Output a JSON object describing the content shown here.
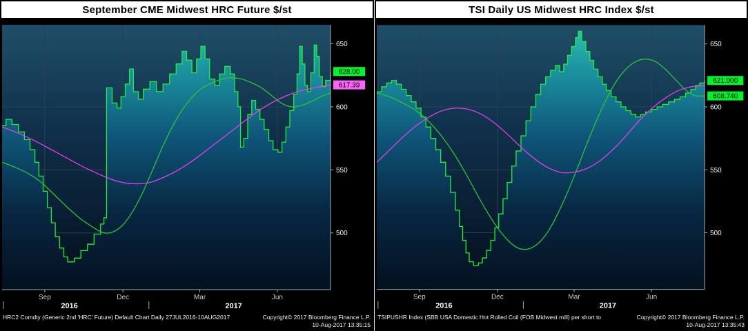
{
  "colors": {
    "background": "#000000",
    "titlebar_bg": "#ffffff",
    "titlebar_text": "#000000",
    "grid": "#2b4055",
    "axis_line": "#9fb0bb",
    "ytick_text": "#f2f5f7",
    "month_text": "#c6cdd3",
    "year_text": "#ffffff",
    "footer_text": "#f0f2f4",
    "price_green": "#22ef3c",
    "ma_green": "#2cc43a",
    "ma_magenta": "#e83ee8",
    "badge_green": "#00f32b",
    "badge_magenta": "#fa64fa",
    "badge_text": "#000000",
    "plot_bg_stops": [
      "#1f4e68",
      "#10304a",
      "#081c30",
      "#040d18"
    ],
    "area_fill_stops": [
      "#31c2b4",
      "#1d98a2",
      "#0f567a",
      "#082843",
      "#04101f"
    ]
  },
  "panels": [
    {
      "title": "September CME Midwest HRC Future $/st",
      "footer_left": "HRC2 Comdty (Generic 2nd 'HRC' Future) Default Chart  Daily 27JUL2016-10AUG2017",
      "copyright": "Copyright© 2017 Bloomberg Finance L.P.",
      "timestamp": "10-Aug-2017 13:35:15"
    },
    {
      "title": "TSI Daily US Midwest HRC Index $/st",
      "footer_left": "TSIPUSHR Index (SBB USA Domestic Hot Rolled Coil (FOB Midwest mill) per short to",
      "copyright": "Copyright© 2017 Bloomberg Finance L.P.",
      "timestamp": "10-Aug-2017 13:35:43"
    }
  ],
  "chart_data": [
    {
      "type": "area",
      "title": "September CME Midwest HRC Future $/st",
      "ylabel": "$/st",
      "y_axis_side": "right",
      "ylim": [
        455,
        665
      ],
      "yticks": [
        500,
        550,
        600,
        650
      ],
      "xticks": [
        {
          "pos": 0.13,
          "label": "Sep"
        },
        {
          "pos": 0.368,
          "label": "Dec"
        },
        {
          "pos": 0.602,
          "label": "Mar"
        },
        {
          "pos": 0.838,
          "label": "Jun"
        }
      ],
      "year_labels": [
        {
          "pos": 0.205,
          "label": "2016"
        },
        {
          "pos": 0.705,
          "label": "2017"
        }
      ],
      "year_dividers": [
        0.004,
        0.447
      ],
      "series": [
        {
          "name": "HRC2 last price",
          "style": "step-area",
          "color": "#22ef3c",
          "x": [
            0,
            0.012,
            0.03,
            0.05,
            0.068,
            0.085,
            0.1,
            0.112,
            0.125,
            0.138,
            0.15,
            0.162,
            0.175,
            0.188,
            0.2,
            0.22,
            0.24,
            0.26,
            0.28,
            0.3,
            0.31,
            0.318,
            0.335,
            0.35,
            0.362,
            0.375,
            0.388,
            0.4,
            0.415,
            0.43,
            0.45,
            0.47,
            0.49,
            0.51,
            0.53,
            0.548,
            0.562,
            0.578,
            0.592,
            0.605,
            0.618,
            0.632,
            0.648,
            0.662,
            0.678,
            0.695,
            0.708,
            0.718,
            0.726,
            0.736,
            0.748,
            0.76,
            0.772,
            0.785,
            0.798,
            0.812,
            0.825,
            0.84,
            0.852,
            0.864,
            0.876,
            0.888,
            0.898,
            0.906,
            0.914,
            0.922,
            0.93,
            0.94,
            0.95,
            0.958,
            0.966,
            0.975,
            0.985,
            1
          ],
          "y": [
            585,
            590,
            586,
            580,
            574,
            566,
            556,
            545,
            533,
            520,
            508,
            497,
            488,
            481,
            477,
            480,
            486,
            491,
            499,
            507,
            512,
            615,
            603,
            599,
            608,
            618,
            630,
            612,
            606,
            614,
            620,
            612,
            618,
            626,
            634,
            644,
            637,
            627,
            638,
            648,
            638,
            622,
            617,
            626,
            632,
            626,
            612,
            600,
            568,
            575,
            594,
            605,
            598,
            590,
            582,
            573,
            566,
            564,
            572,
            584,
            597,
            610,
            626,
            648,
            634,
            617,
            612,
            627,
            649,
            640,
            624,
            616,
            621,
            628
          ]
        },
        {
          "name": "moving average fast",
          "style": "smooth",
          "color": "#2cc43a",
          "x": [
            0,
            0.04,
            0.08,
            0.12,
            0.16,
            0.2,
            0.24,
            0.28,
            0.31,
            0.34,
            0.37,
            0.4,
            0.43,
            0.46,
            0.49,
            0.52,
            0.55,
            0.58,
            0.61,
            0.64,
            0.67,
            0.7,
            0.73,
            0.76,
            0.79,
            0.82,
            0.85,
            0.88,
            0.91,
            0.94,
            0.97,
            1
          ],
          "y": [
            556,
            552,
            547,
            540,
            530,
            520,
            511,
            504,
            500,
            501,
            507,
            518,
            533,
            551,
            569,
            585,
            598,
            608,
            615,
            619,
            622,
            623,
            622,
            619,
            615,
            609,
            603,
            600,
            601,
            604,
            608,
            611
          ]
        },
        {
          "name": "moving average slow",
          "style": "smooth",
          "color": "#e83ee8",
          "x": [
            0,
            0.05,
            0.1,
            0.15,
            0.2,
            0.25,
            0.3,
            0.35,
            0.4,
            0.45,
            0.5,
            0.55,
            0.6,
            0.65,
            0.7,
            0.75,
            0.8,
            0.85,
            0.9,
            0.95,
            1
          ],
          "y": [
            584,
            579,
            573,
            566,
            559,
            552,
            546,
            541,
            539,
            540,
            545,
            552,
            561,
            571,
            581,
            591,
            600,
            607,
            612,
            615,
            617.4
          ]
        }
      ],
      "last_labels": [
        {
          "value": "628.00",
          "y": 628.0,
          "bg": "#00f32b"
        },
        {
          "value": "617.39",
          "y": 617.39,
          "bg": "#fa64fa"
        }
      ]
    },
    {
      "type": "area",
      "title": "TSI Daily US Midwest HRC Index $/st",
      "ylabel": "$/st",
      "y_axis_side": "right",
      "ylim": [
        455,
        665
      ],
      "yticks": [
        500,
        550,
        600,
        650
      ],
      "xticks": [
        {
          "pos": 0.13,
          "label": "Sep"
        },
        {
          "pos": 0.368,
          "label": "Dec"
        },
        {
          "pos": 0.602,
          "label": "Mar"
        },
        {
          "pos": 0.838,
          "label": "Jun"
        }
      ],
      "year_labels": [
        {
          "pos": 0.205,
          "label": "2016"
        },
        {
          "pos": 0.705,
          "label": "2017"
        }
      ],
      "year_dividers": [
        0.004,
        0.447
      ],
      "series": [
        {
          "name": "TSIPUSHR index value",
          "style": "step-area",
          "color": "#22ef3c",
          "x": [
            0,
            0.015,
            0.03,
            0.045,
            0.06,
            0.075,
            0.09,
            0.105,
            0.12,
            0.135,
            0.15,
            0.165,
            0.18,
            0.195,
            0.21,
            0.225,
            0.24,
            0.252,
            0.262,
            0.272,
            0.282,
            0.295,
            0.31,
            0.322,
            0.335,
            0.348,
            0.36,
            0.372,
            0.385,
            0.398,
            0.412,
            0.425,
            0.44,
            0.455,
            0.47,
            0.485,
            0.5,
            0.515,
            0.53,
            0.545,
            0.558,
            0.57,
            0.582,
            0.594,
            0.606,
            0.615,
            0.625,
            0.638,
            0.65,
            0.662,
            0.675,
            0.688,
            0.7,
            0.715,
            0.73,
            0.745,
            0.76,
            0.775,
            0.79,
            0.805,
            0.82,
            0.838,
            0.855,
            0.872,
            0.89,
            0.908,
            0.925,
            0.942,
            0.958,
            0.972,
            0.985,
            1
          ],
          "y": [
            612,
            616,
            619,
            621,
            618,
            614,
            609,
            604,
            599,
            592,
            584,
            575,
            566,
            556,
            545,
            532,
            518,
            505,
            494,
            484,
            477,
            474,
            476,
            480,
            486,
            494,
            504,
            515,
            527,
            540,
            553,
            565,
            577,
            589,
            600,
            610,
            618,
            624,
            629,
            633,
            628,
            634,
            641,
            648,
            655,
            660,
            652,
            644,
            637,
            630,
            624,
            618,
            613,
            608,
            604,
            600,
            597,
            594,
            592,
            594,
            596,
            598,
            600,
            602,
            604,
            606,
            608,
            611,
            614,
            617,
            619,
            621
          ]
        },
        {
          "name": "moving average fast",
          "style": "smooth",
          "color": "#2cc43a",
          "x": [
            0,
            0.04,
            0.08,
            0.12,
            0.16,
            0.2,
            0.24,
            0.28,
            0.32,
            0.36,
            0.4,
            0.43,
            0.46,
            0.49,
            0.52,
            0.55,
            0.58,
            0.61,
            0.64,
            0.67,
            0.7,
            0.73,
            0.76,
            0.79,
            0.82,
            0.85,
            0.88,
            0.91,
            0.94,
            0.97,
            1
          ],
          "y": [
            611,
            608,
            603,
            597,
            588,
            576,
            561,
            543,
            524,
            507,
            494,
            488,
            487,
            491,
            500,
            514,
            531,
            550,
            570,
            589,
            606,
            620,
            630,
            636,
            638,
            636,
            630,
            622,
            614,
            609,
            608.7
          ]
        },
        {
          "name": "moving average slow",
          "style": "smooth",
          "color": "#e83ee8",
          "x": [
            0,
            0.04,
            0.08,
            0.12,
            0.16,
            0.2,
            0.24,
            0.28,
            0.32,
            0.36,
            0.4,
            0.44,
            0.48,
            0.52,
            0.56,
            0.6,
            0.64,
            0.68,
            0.72,
            0.76,
            0.8,
            0.84,
            0.88,
            0.92,
            0.96,
            1
          ],
          "y": [
            556,
            566,
            576,
            585,
            592,
            597,
            599,
            598,
            594,
            587,
            578,
            568,
            559,
            552,
            548,
            548,
            551,
            557,
            566,
            577,
            589,
            599,
            607,
            613,
            616,
            617
          ]
        }
      ],
      "last_labels": [
        {
          "value": "621.000",
          "y": 621.0,
          "bg": "#00f32b"
        },
        {
          "value": "608.740",
          "y": 608.74,
          "bg": "#00f32b"
        }
      ]
    }
  ]
}
